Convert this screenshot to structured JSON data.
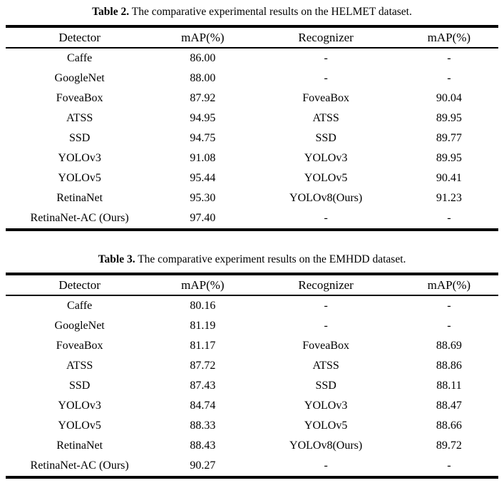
{
  "page": {
    "background_color": "#ffffff",
    "text_color": "#000000",
    "rule_color": "#000000"
  },
  "tables": [
    {
      "caption_label": "Table 2.",
      "caption_text": "The comparative experimental results on the HELMET dataset.",
      "columns": [
        "Detector",
        "mAP(%)",
        "Recognizer",
        "mAP(%)"
      ],
      "rows": [
        [
          "Caffe",
          "86.00",
          "-",
          "-"
        ],
        [
          "GoogleNet",
          "88.00",
          "-",
          "-"
        ],
        [
          "FoveaBox",
          "87.92",
          "FoveaBox",
          "90.04"
        ],
        [
          "ATSS",
          "94.95",
          "ATSS",
          "89.95"
        ],
        [
          "SSD",
          "94.75",
          "SSD",
          "89.77"
        ],
        [
          "YOLOv3",
          "91.08",
          "YOLOv3",
          "89.95"
        ],
        [
          "YOLOv5",
          "95.44",
          "YOLOv5",
          "90.41"
        ],
        [
          "RetinaNet",
          "95.30",
          "YOLOv8(Ours)",
          "91.23"
        ],
        [
          "RetinaNet-AC (Ours)",
          "97.40",
          "-",
          "-"
        ]
      ]
    },
    {
      "caption_label": "Table 3.",
      "caption_text": "The comparative experiment results on the EMHDD dataset.",
      "columns": [
        "Detector",
        "mAP(%)",
        "Recognizer",
        "mAP(%)"
      ],
      "rows": [
        [
          "Caffe",
          "80.16",
          "-",
          "-"
        ],
        [
          "GoogleNet",
          "81.19",
          "-",
          "-"
        ],
        [
          "FoveaBox",
          "81.17",
          "FoveaBox",
          "88.69"
        ],
        [
          "ATSS",
          "87.72",
          "ATSS",
          "88.86"
        ],
        [
          "SSD",
          "87.43",
          "SSD",
          "88.11"
        ],
        [
          "YOLOv3",
          "84.74",
          "YOLOv3",
          "88.47"
        ],
        [
          "YOLOv5",
          "88.33",
          "YOLOv5",
          "88.66"
        ],
        [
          "RetinaNet",
          "88.43",
          "YOLOv8(Ours)",
          "89.72"
        ],
        [
          "RetinaNet-AC (Ours)",
          "90.27",
          "-",
          "-"
        ]
      ]
    }
  ]
}
